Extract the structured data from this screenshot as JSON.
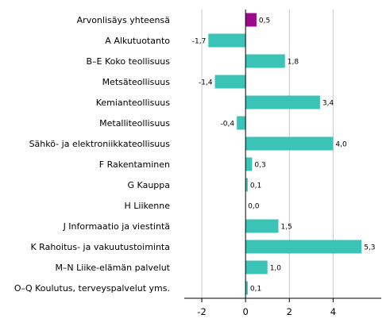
{
  "chart_data": {
    "type": "bar",
    "orientation": "horizontal",
    "categories": [
      "Arvonlisäys yhteensä",
      "A Alkutuotanto",
      "B–E Koko teollisuus",
      "Metsäteollisuus",
      "Kemianteollisuus",
      "Metalliteollisuus",
      "Sähkö- ja elektroniikkateollisuus",
      "F Rakentaminen",
      "G Kauppa",
      "H Liikenne",
      "J Informaatio ja viestintä",
      "K Rahoitus- ja vakuutustoiminta",
      "M–N Liike-elämän palvelut",
      "O–Q Koulutus, terveyspalvelut yms."
    ],
    "values": [
      0.5,
      -1.7,
      1.8,
      -1.4,
      3.4,
      -0.4,
      4.0,
      0.3,
      0.1,
      0.0,
      1.5,
      5.3,
      1.0,
      0.1
    ],
    "value_labels": [
      "0,5",
      "-1,7",
      "1,8",
      "-1,4",
      "3,4",
      "-0,4",
      "4,0",
      "0,3",
      "0,1",
      "0,0",
      "1,5",
      "5,3",
      "1,0",
      "0,1"
    ],
    "highlight_index": 0,
    "colors": {
      "default": "#3cc3b8",
      "highlight": "#9c0a8c"
    },
    "xlim": [
      -2.8,
      6.2
    ],
    "xticks": [
      -2,
      0,
      2,
      4
    ],
    "xtick_labels": [
      "-2",
      "0",
      "2",
      "4"
    ],
    "grid": true,
    "title": "",
    "xlabel": "",
    "ylabel": ""
  }
}
